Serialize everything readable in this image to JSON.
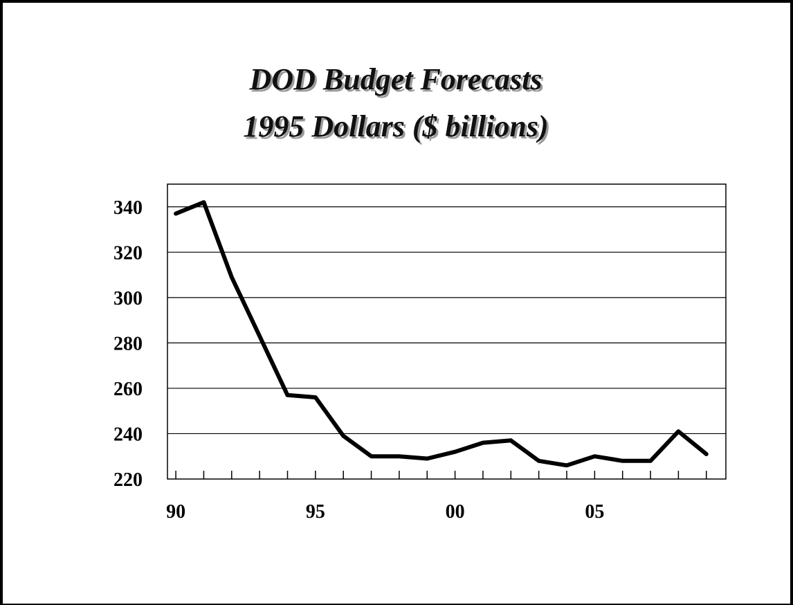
{
  "chart_data": {
    "type": "line",
    "title_lines": [
      "DOD Budget Forecasts",
      "1995 Dollars ($ billions)"
    ],
    "xlabel": "",
    "ylabel": "",
    "x": [
      1990,
      1991,
      1992,
      1993,
      1994,
      1995,
      1996,
      1997,
      1998,
      1999,
      2000,
      2001,
      2002,
      2003,
      2004,
      2005,
      2006,
      2007,
      2008,
      2009
    ],
    "series": [
      {
        "values": [
          337,
          342,
          309,
          283,
          257,
          256,
          239,
          230,
          230,
          229,
          232,
          236,
          237,
          228,
          226,
          230,
          228,
          228,
          241,
          231
        ]
      }
    ],
    "ylim": [
      220,
      350
    ],
    "xlim": [
      1989.7,
      2009.7
    ],
    "y_ticks": [
      220,
      240,
      260,
      280,
      300,
      320,
      340
    ],
    "y_tick_labels": [
      "220",
      "240",
      "260",
      "280",
      "300",
      "320",
      "340"
    ],
    "x_ticks": [
      1990,
      1995,
      2000,
      2005
    ],
    "x_tick_labels": [
      "90",
      "95",
      "00",
      "05"
    ],
    "grid": "horizontal",
    "legend": "none",
    "line_color": "#000000"
  }
}
